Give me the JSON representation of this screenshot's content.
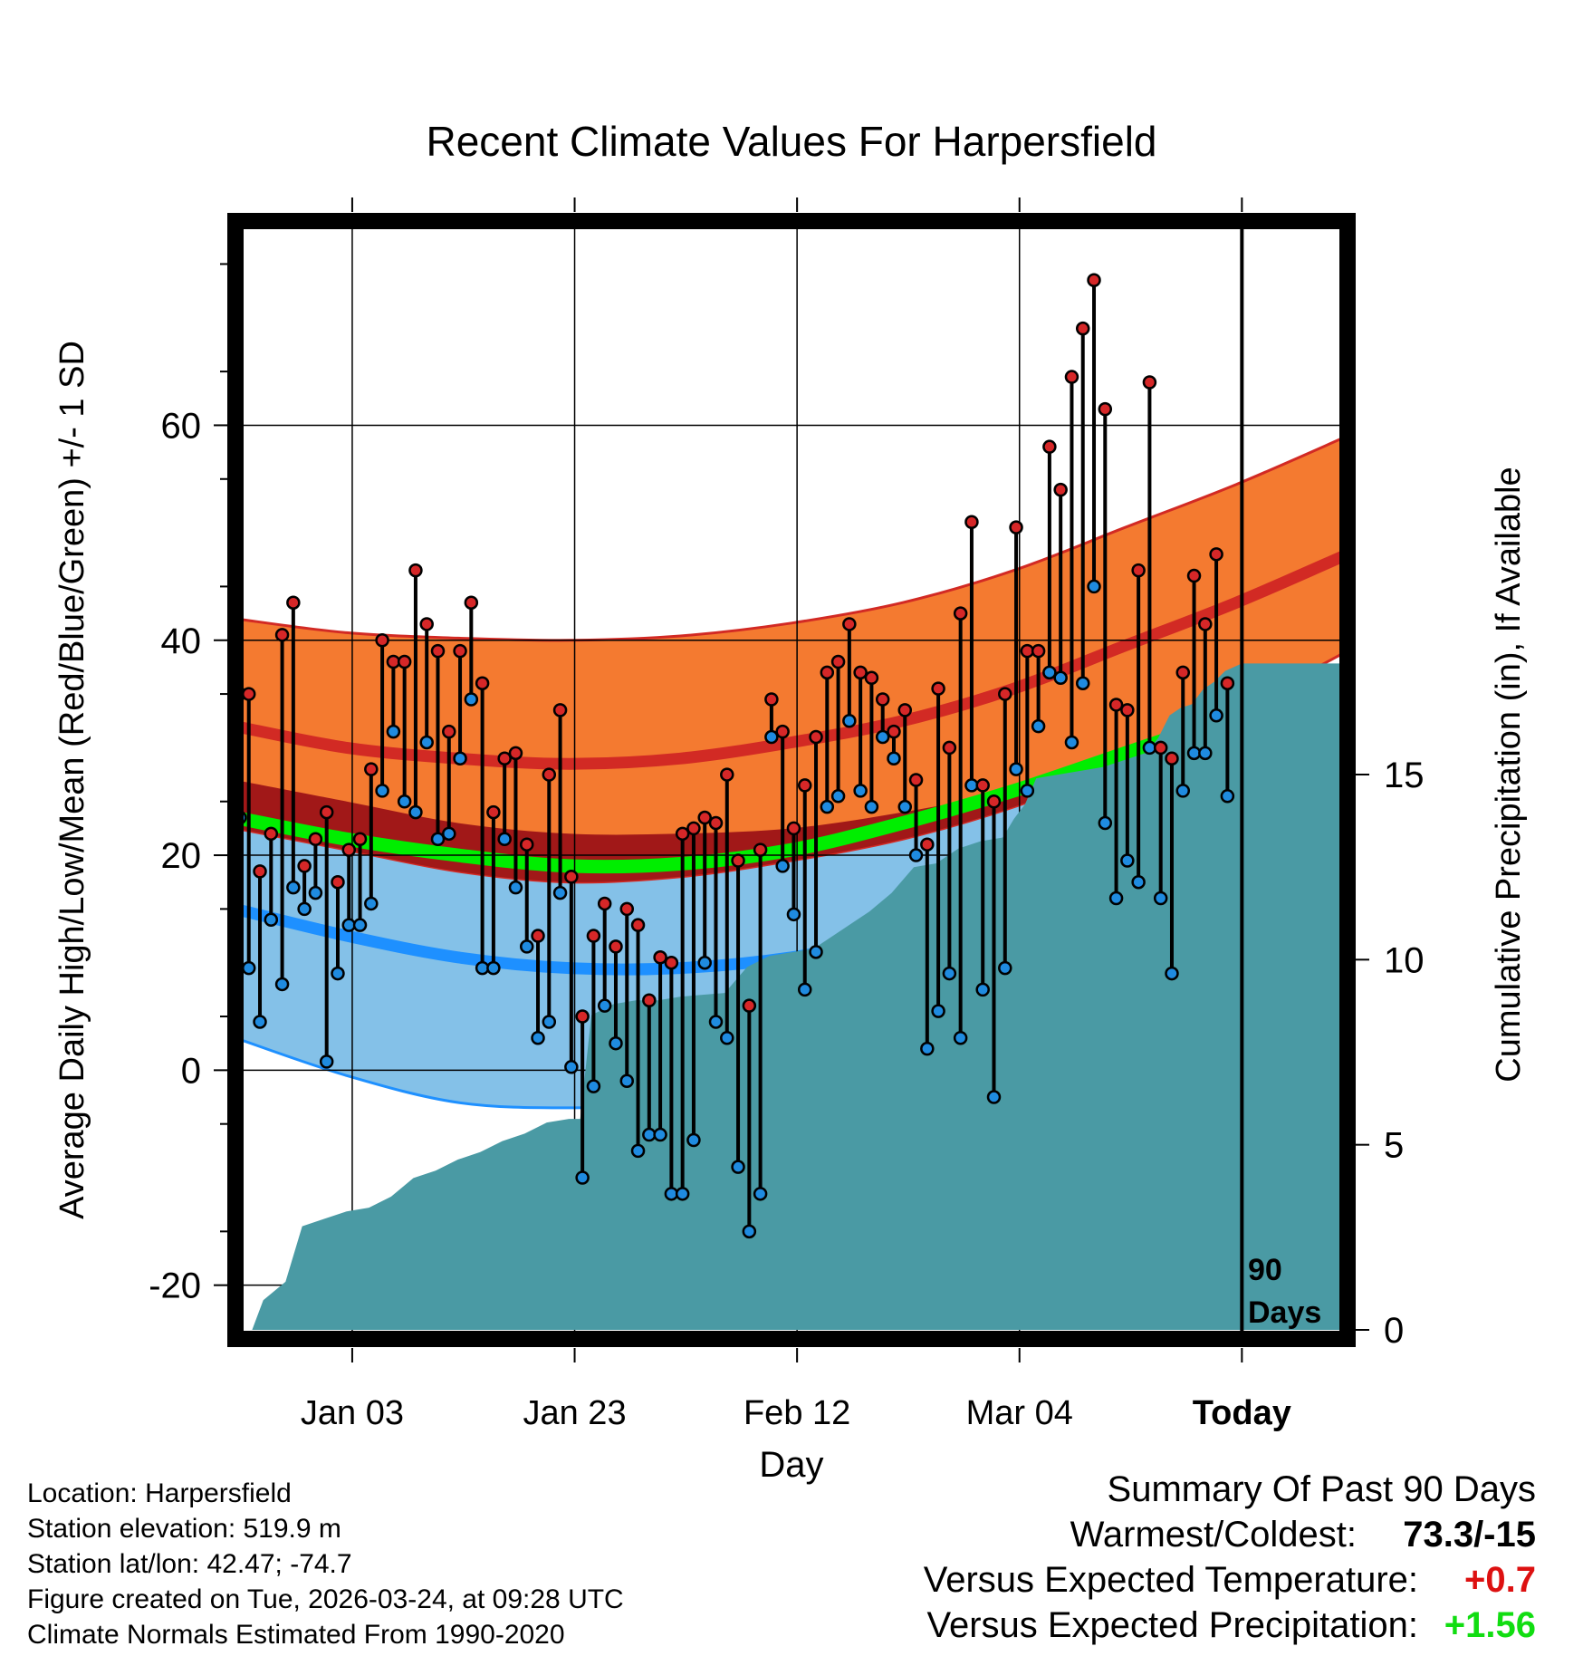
{
  "chart_data": {
    "type": "line",
    "title": "Recent Climate Values For Harpersfield",
    "xlabel": "Day",
    "ylabel_left": "Average Daily High/Low/Mean (Red/Blue/Green) +/- 1 SD",
    "ylabel_right": "Cumulative Precipitation (in), If Available",
    "xlim": [
      0,
      100
    ],
    "ylim": [
      -25,
      79
    ],
    "precip_lim": [
      0,
      30
    ],
    "x_ticks": [
      {
        "x": 10.5,
        "label": "Jan 03"
      },
      {
        "x": 30.5,
        "label": "Jan 23"
      },
      {
        "x": 50.5,
        "label": "Feb 12"
      },
      {
        "x": 70.5,
        "label": "Mar 04"
      },
      {
        "x": 90.5,
        "label": "Today"
      }
    ],
    "y_ticks": [
      -20,
      0,
      20,
      40,
      60
    ],
    "precip_ticks": [
      0,
      5,
      10,
      15
    ],
    "today_x": 90.5,
    "today_label_line1": "90",
    "today_label_line2": "Days",
    "normals": {
      "x": [
        0,
        10,
        20,
        30,
        40,
        50,
        60,
        70,
        80,
        90,
        100
      ],
      "high_mean": [
        32,
        30,
        29,
        28.5,
        29,
        30.5,
        32.5,
        35.5,
        39.5,
        43.5,
        48
      ],
      "high_upper": [
        42,
        40.7,
        40.2,
        40,
        40.4,
        41.6,
        43.5,
        46.5,
        50.5,
        54.5,
        59
      ],
      "high_lower": [
        22.5,
        20.5,
        18.5,
        17.5,
        18,
        19.5,
        21.5,
        24.5,
        28.5,
        33.5,
        39
      ],
      "mean": [
        23.5,
        21.5,
        20,
        19,
        19.2,
        20.5,
        23,
        26,
        29.5,
        33,
        36.5
      ],
      "low_mean": [
        15,
        12.5,
        10.5,
        9.5,
        9.5,
        10.5,
        12.5,
        15,
        18,
        21.5,
        25
      ],
      "low_upper": [
        27,
        25,
        23,
        22,
        22,
        22.5,
        24,
        26,
        28.5,
        31,
        34
      ],
      "low_lower": [
        3,
        -0.5,
        -3,
        -3.5,
        -3,
        -1.5,
        1,
        3.5,
        7,
        11,
        16
      ]
    },
    "days": [
      {
        "x": 0.4,
        "high": 35,
        "low": 23.5
      },
      {
        "x": 1.2,
        "high": 35,
        "low": 9.5
      },
      {
        "x": 2.2,
        "high": 18.5,
        "low": 4.5
      },
      {
        "x": 3.2,
        "high": 22,
        "low": 14
      },
      {
        "x": 4.2,
        "high": 40.5,
        "low": 8
      },
      {
        "x": 5.2,
        "high": 43.5,
        "low": 17
      },
      {
        "x": 6.2,
        "high": 19,
        "low": 15
      },
      {
        "x": 7.2,
        "high": 21.5,
        "low": 16.5
      },
      {
        "x": 8.2,
        "high": 24,
        "low": 0.8
      },
      {
        "x": 9.2,
        "high": 17.5,
        "low": 9
      },
      {
        "x": 10.2,
        "high": 20.5,
        "low": 13.5
      },
      {
        "x": 11.2,
        "high": 21.5,
        "low": 13.5
      },
      {
        "x": 12.2,
        "high": 28,
        "low": 15.5
      },
      {
        "x": 13.2,
        "high": 40,
        "low": 26
      },
      {
        "x": 14.2,
        "high": 38,
        "low": 31.5
      },
      {
        "x": 15.2,
        "high": 38,
        "low": 25
      },
      {
        "x": 16.2,
        "high": 46.5,
        "low": 24
      },
      {
        "x": 17.2,
        "high": 41.5,
        "low": 30.5
      },
      {
        "x": 18.2,
        "high": 39,
        "low": 21.5
      },
      {
        "x": 19.2,
        "high": 31.5,
        "low": 22
      },
      {
        "x": 20.2,
        "high": 39,
        "low": 29
      },
      {
        "x": 21.2,
        "high": 43.5,
        "low": 34.5
      },
      {
        "x": 22.2,
        "high": 36,
        "low": 9.5
      },
      {
        "x": 23.2,
        "high": 24,
        "low": 9.5
      },
      {
        "x": 24.2,
        "high": 29,
        "low": 21.5
      },
      {
        "x": 25.2,
        "high": 29.5,
        "low": 17
      },
      {
        "x": 26.2,
        "high": 21,
        "low": 11.5
      },
      {
        "x": 27.2,
        "high": 12.5,
        "low": 3
      },
      {
        "x": 28.2,
        "high": 27.5,
        "low": 4.5
      },
      {
        "x": 29.2,
        "high": 33.5,
        "low": 16.5
      },
      {
        "x": 30.2,
        "high": 18,
        "low": 0.3
      },
      {
        "x": 31.2,
        "high": 5,
        "low": -10
      },
      {
        "x": 32.2,
        "high": 12.5,
        "low": -1.5
      },
      {
        "x": 33.2,
        "high": 15.5,
        "low": 6
      },
      {
        "x": 34.2,
        "high": 11.5,
        "low": 2.5
      },
      {
        "x": 35.2,
        "high": 15,
        "low": -1
      },
      {
        "x": 36.2,
        "high": 13.5,
        "low": -7.5
      },
      {
        "x": 37.2,
        "high": 6.5,
        "low": -6
      },
      {
        "x": 38.2,
        "high": 10.5,
        "low": -6
      },
      {
        "x": 39.2,
        "high": 10,
        "low": -11.5
      },
      {
        "x": 40.2,
        "high": 22,
        "low": -11.5
      },
      {
        "x": 41.2,
        "high": 22.5,
        "low": -6.5
      },
      {
        "x": 42.2,
        "high": 23.5,
        "low": 10
      },
      {
        "x": 43.2,
        "high": 23,
        "low": 4.5
      },
      {
        "x": 44.2,
        "high": 27.5,
        "low": 3
      },
      {
        "x": 45.2,
        "high": 19.5,
        "low": -9
      },
      {
        "x": 46.2,
        "high": 6,
        "low": -15
      },
      {
        "x": 47.2,
        "high": 20.5,
        "low": -11.5
      },
      {
        "x": 48.2,
        "high": 34.5,
        "low": 31
      },
      {
        "x": 49.2,
        "high": 31.5,
        "low": 19
      },
      {
        "x": 50.2,
        "high": 22.5,
        "low": 14.5
      },
      {
        "x": 51.2,
        "high": 26.5,
        "low": 7.5
      },
      {
        "x": 52.2,
        "high": 31,
        "low": 11
      },
      {
        "x": 53.2,
        "high": 37,
        "low": 24.5
      },
      {
        "x": 54.2,
        "high": 38,
        "low": 25.5
      },
      {
        "x": 55.2,
        "high": 41.5,
        "low": 32.5
      },
      {
        "x": 56.2,
        "high": 37,
        "low": 26
      },
      {
        "x": 57.2,
        "high": 36.5,
        "low": 24.5
      },
      {
        "x": 58.2,
        "high": 34.5,
        "low": 31
      },
      {
        "x": 59.2,
        "high": 31.5,
        "low": 29
      },
      {
        "x": 60.2,
        "high": 33.5,
        "low": 24.5
      },
      {
        "x": 61.2,
        "high": 27,
        "low": 20
      },
      {
        "x": 62.2,
        "high": 21,
        "low": 2
      },
      {
        "x": 63.2,
        "high": 35.5,
        "low": 5.5
      },
      {
        "x": 64.2,
        "high": 30,
        "low": 9
      },
      {
        "x": 65.2,
        "high": 42.5,
        "low": 3
      },
      {
        "x": 66.2,
        "high": 51,
        "low": 26.5
      },
      {
        "x": 67.2,
        "high": 26.5,
        "low": 7.5
      },
      {
        "x": 68.2,
        "high": 25,
        "low": -2.5
      },
      {
        "x": 69.2,
        "high": 35,
        "low": 9.5
      },
      {
        "x": 70.2,
        "high": 50.5,
        "low": 28
      },
      {
        "x": 71.2,
        "high": 39,
        "low": 26
      },
      {
        "x": 72.2,
        "high": 39,
        "low": 32
      },
      {
        "x": 73.2,
        "high": 58,
        "low": 37
      },
      {
        "x": 74.2,
        "high": 54,
        "low": 36.5
      },
      {
        "x": 75.2,
        "high": 64.5,
        "low": 30.5
      },
      {
        "x": 76.2,
        "high": 69,
        "low": 36
      },
      {
        "x": 77.2,
        "high": 73.5,
        "low": 45
      },
      {
        "x": 78.2,
        "high": 61.5,
        "low": 23
      },
      {
        "x": 79.2,
        "high": 34,
        "low": 16
      },
      {
        "x": 80.2,
        "high": 33.5,
        "low": 19.5
      },
      {
        "x": 81.2,
        "high": 46.5,
        "low": 17.5
      },
      {
        "x": 82.2,
        "high": 64,
        "low": 30
      },
      {
        "x": 83.2,
        "high": 30,
        "low": 16
      },
      {
        "x": 84.2,
        "high": 29,
        "low": 9
      },
      {
        "x": 85.2,
        "high": 37,
        "low": 26
      },
      {
        "x": 86.2,
        "high": 46,
        "low": 29.5
      },
      {
        "x": 87.2,
        "high": 41.5,
        "low": 29.5
      },
      {
        "x": 88.2,
        "high": 48,
        "low": 33
      },
      {
        "x": 89.2,
        "high": 36,
        "low": 25.5
      }
    ],
    "precip": {
      "x": [
        1.5,
        2.5,
        4.5,
        6,
        8,
        10,
        12,
        14,
        16,
        18,
        20,
        22,
        24,
        26,
        28,
        30,
        31,
        32,
        34,
        36,
        38,
        40,
        44,
        46,
        48,
        50,
        52,
        55,
        57,
        59,
        61,
        63,
        65,
        67,
        69,
        70,
        71,
        72,
        74,
        76,
        78,
        80,
        82,
        83,
        84,
        85,
        86,
        87,
        88,
        89,
        90.5,
        100
      ],
      "cum": [
        0,
        0.8,
        1.3,
        2.8,
        3.0,
        3.2,
        3.3,
        3.6,
        4.1,
        4.3,
        4.6,
        4.8,
        5.1,
        5.3,
        5.6,
        5.7,
        5.7,
        8.5,
        8.8,
        8.9,
        8.9,
        9.0,
        9.1,
        9.8,
        10.1,
        10.2,
        10.3,
        10.9,
        11.3,
        11.8,
        12.5,
        12.6,
        13.0,
        13.2,
        13.3,
        13.8,
        14.2,
        14.9,
        15.0,
        15.1,
        15.2,
        15.4,
        15.6,
        16.0,
        16.6,
        16.8,
        16.9,
        17.3,
        17.5,
        17.8,
        18.0,
        18.0
      ]
    }
  },
  "colors": {
    "high_band": "#f47a30",
    "high_line": "#d22a24",
    "low_band": "#84c1e8",
    "low_line": "#1e90ff",
    "overlap_band": "#a11818",
    "mean_line": "#00ee00",
    "precip_fill": "#4a9aa4",
    "high_dot": "#d62728",
    "low_dot": "#1f8be0",
    "positive_temp": "#dd1111",
    "positive_precip": "#11dd11"
  },
  "info": {
    "location": "Location: Harpersfield",
    "elevation": "Station elevation: 519.9 m",
    "latlon": "Station lat/lon: 42.47; -74.7",
    "created": "Figure created on Tue, 2026-03-24, at 09:28 UTC",
    "normals": "Climate Normals Estimated From 1990-2020"
  },
  "summary": {
    "title": "Summary Of Past 90 Days",
    "warm_cold_label": "Warmest/Coldest:",
    "warm_cold_value": "73.3/-15",
    "temp_label": "Versus Expected Temperature:",
    "temp_value": "+0.7",
    "precip_label": "Versus Expected Precipitation:",
    "precip_value": "+1.56"
  }
}
